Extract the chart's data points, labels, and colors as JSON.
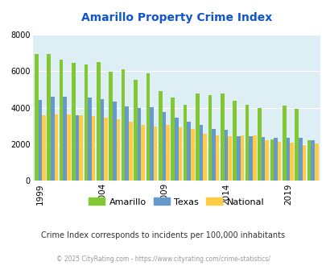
{
  "title": "Amarillo Property Crime Index",
  "subtitle": "Crime Index corresponds to incidents per 100,000 inhabitants",
  "footer": "© 2025 CityRating.com - https://www.cityrating.com/crime-statistics/",
  "years": [
    1999,
    2000,
    2001,
    2002,
    2003,
    2004,
    2005,
    2006,
    2007,
    2008,
    2009,
    2010,
    2011,
    2012,
    2013,
    2014,
    2015,
    2016,
    2017,
    2018,
    2019,
    2020,
    2021
  ],
  "amarillo": [
    6950,
    6950,
    6650,
    6450,
    6380,
    6500,
    5980,
    6100,
    5530,
    5880,
    4900,
    4540,
    4150,
    4770,
    4700,
    4770,
    4380,
    4170,
    3970,
    2250,
    4100,
    3930,
    2200
  ],
  "texas": [
    4430,
    4600,
    4600,
    3600,
    4570,
    4490,
    4320,
    4060,
    3970,
    4020,
    3770,
    3440,
    3220,
    3060,
    2840,
    2800,
    2460,
    2460,
    2380,
    2360,
    2340,
    2350,
    2200
  ],
  "national": [
    3600,
    3650,
    3650,
    3600,
    3540,
    3440,
    3370,
    3220,
    3080,
    2960,
    3040,
    2920,
    2860,
    2560,
    2490,
    2450,
    2490,
    2490,
    2200,
    2150,
    2100,
    1950,
    2050
  ],
  "bar_color_amarillo": "#82c832",
  "bar_color_texas": "#6699cc",
  "bar_color_national": "#ffcc44",
  "bg_color": "#ddeef4",
  "title_color": "#1155cc",
  "ylim": [
    0,
    8000
  ],
  "ylabel_ticks": [
    0,
    2000,
    4000,
    6000,
    8000
  ],
  "x_tick_years": [
    1999,
    2004,
    2009,
    2014,
    2019
  ],
  "legend_labels": [
    "Amarillo",
    "Texas",
    "National"
  ]
}
